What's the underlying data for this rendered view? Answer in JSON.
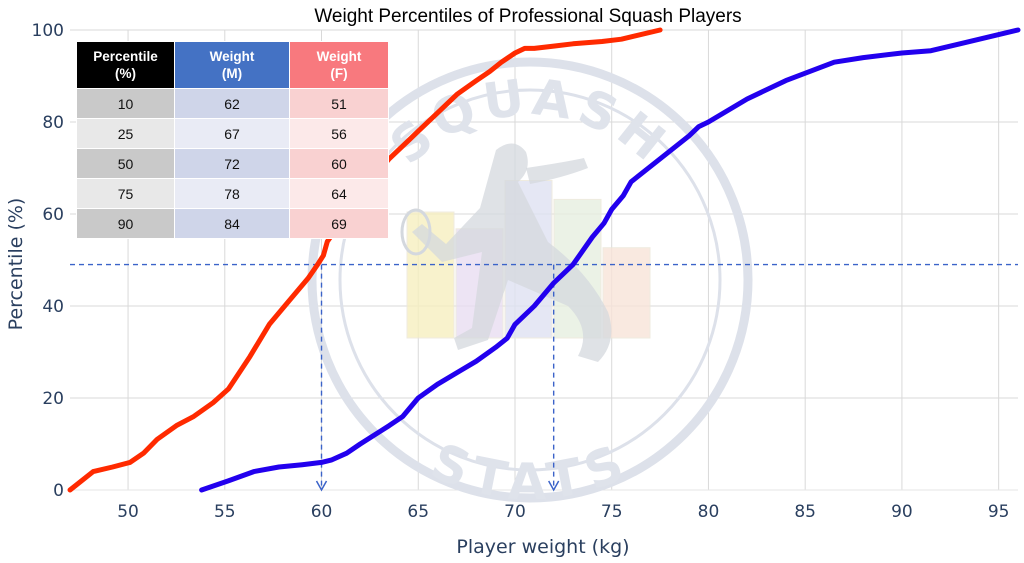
{
  "chart_data": {
    "type": "line",
    "title": "Weight Percentiles of Professional Squash Players",
    "xlabel": "Player weight (kg)",
    "ylabel": "Percentile (%)",
    "xlim": [
      47,
      96
    ],
    "ylim": [
      0,
      100
    ],
    "xticks": [
      50,
      55,
      60,
      65,
      70,
      75,
      80,
      85,
      90,
      95
    ],
    "yticks": [
      0,
      20,
      40,
      60,
      80,
      100
    ],
    "grid": true,
    "series": [
      {
        "color": "#ff2a00",
        "x": [
          47,
          48.2,
          49.2,
          50.1,
          50.8,
          51.5,
          52.5,
          53.4,
          54.4,
          55.2,
          56.3,
          57.3,
          58.3,
          59.3,
          59.8,
          60.1,
          60.3,
          60.8,
          61.3,
          62.5,
          63.5,
          64.5,
          65.0,
          66.0,
          67.0,
          68.0,
          68.7,
          69.3,
          70.0,
          70.5,
          71.0,
          72.0,
          73.0,
          74.5,
          75.5,
          77.5
        ],
        "y": [
          0,
          4,
          5,
          6,
          8,
          11,
          14,
          16,
          19,
          22,
          29,
          36,
          41,
          46,
          49,
          51,
          54,
          57,
          60,
          67,
          72,
          76,
          78,
          82,
          86,
          89,
          91,
          93,
          95,
          96,
          96,
          96.5,
          97,
          97.5,
          98,
          100
        ]
      },
      {
        "color": "#2200ee",
        "x": [
          53.8,
          55.2,
          56.5,
          57.8,
          59.0,
          60.0,
          60.5,
          61.3,
          62.0,
          63.5,
          64.2,
          65.0,
          66.0,
          67.2,
          68.0,
          69.0,
          69.6,
          70.0,
          71.0,
          72.0,
          72.5,
          73.0,
          74.0,
          74.6,
          75.0,
          75.6,
          76.0,
          77.5,
          79.0,
          79.5,
          80.0,
          82.0,
          84.0,
          86.5,
          88.0,
          90.0,
          91.5,
          93.0,
          96.0
        ],
        "y": [
          0,
          2,
          4,
          5,
          5.5,
          6,
          6.5,
          8,
          10,
          14,
          16,
          20,
          23,
          26,
          28,
          31,
          33,
          36,
          40,
          45,
          47,
          49,
          55,
          58,
          61,
          64,
          67,
          72,
          77,
          79,
          80,
          85,
          89,
          93,
          94,
          95,
          95.5,
          97,
          100
        ]
      }
    ],
    "annotations": {
      "reference_line_y": 49,
      "arrows_at_x": [
        60,
        72
      ]
    },
    "watermark": {
      "top_text": "SQUASH",
      "bottom_text": "STATS",
      "bar_colors": [
        "#f7f0c0",
        "#e9def2",
        "#dfe2f2",
        "#e7efe0",
        "#f8e4d9"
      ],
      "bar_values": [
        60,
        52,
        75,
        66,
        43
      ]
    }
  },
  "table": {
    "headers": [
      "Percentile (%)",
      "Weight (M) (kg)",
      "Weight (F) (kg)"
    ],
    "header_colors": [
      "#000000",
      "#4472c4",
      "#f8797e"
    ],
    "rows": [
      [
        "10",
        "62",
        "51"
      ],
      [
        "25",
        "67",
        "56"
      ],
      [
        "50",
        "72",
        "60"
      ],
      [
        "75",
        "78",
        "64"
      ],
      [
        "90",
        "84",
        "69"
      ]
    ],
    "row_colors_odd": [
      "#c9c9c9",
      "#cfd5e9",
      "#f9d1d1"
    ],
    "row_colors_even": [
      "#e8e8e8",
      "#e9ebf5",
      "#fce9e9"
    ]
  }
}
